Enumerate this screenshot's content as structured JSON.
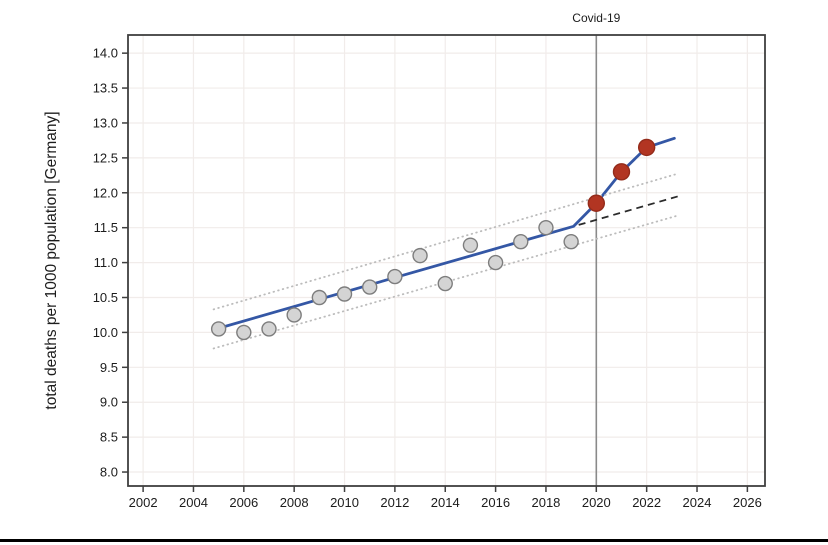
{
  "page": {
    "background": "#ffffff",
    "bottom_rule_color": "#000000"
  },
  "chart_data": {
    "type": "scatter",
    "title": "",
    "xlabel": "",
    "ylabel": "total deaths per 1000 population [Germany]",
    "xlim": [
      2001.4,
      2026.7
    ],
    "ylim": [
      7.8,
      14.26
    ],
    "xticks": [
      2002,
      2004,
      2006,
      2008,
      2010,
      2012,
      2014,
      2016,
      2018,
      2020,
      2022,
      2024,
      2026
    ],
    "yticks": [
      8.0,
      8.5,
      9.0,
      9.5,
      10.0,
      10.5,
      11.0,
      11.5,
      12.0,
      12.5,
      13.0,
      13.5,
      14.0
    ],
    "ytick_labels": [
      "8.0",
      "8.5",
      "9.0",
      "9.5",
      "10.0",
      "10.5",
      "11.0",
      "11.5",
      "12.0",
      "12.5",
      "13.0",
      "13.5",
      "14.0"
    ],
    "grid": true,
    "legend": "none",
    "annotation": {
      "label": "Covid-19",
      "x": 2020
    },
    "series": [
      {
        "name": "observed-pre-covid",
        "type": "scatter",
        "marker_fill": "#d4d4d4",
        "marker_stroke": "#7d7d7d",
        "x": [
          2005,
          2006,
          2007,
          2008,
          2009,
          2010,
          2011,
          2012,
          2013,
          2014,
          2015,
          2016,
          2017,
          2018,
          2019
        ],
        "y": [
          10.05,
          10.0,
          10.05,
          10.25,
          10.5,
          10.55,
          10.65,
          10.8,
          11.1,
          10.7,
          11.25,
          11.0,
          11.3,
          11.5,
          11.3
        ]
      },
      {
        "name": "covid-years",
        "type": "scatter",
        "marker_fill": "#b23522",
        "marker_stroke": "#942b1a",
        "x": [
          2020,
          2021,
          2022
        ],
        "y": [
          11.85,
          12.3,
          12.65
        ]
      },
      {
        "name": "fit-and-observed-line",
        "type": "line",
        "color": "#3457a5",
        "x": [
          2005,
          2019.1,
          2020,
          2021,
          2022,
          2023.1
        ],
        "y": [
          10.06,
          11.52,
          11.85,
          12.3,
          12.65,
          12.78
        ]
      },
      {
        "name": "pre-covid-trend-extrapolation",
        "type": "dashed-line",
        "color": "#2b2b2b",
        "x": [
          2019.3,
          2023.35
        ],
        "y": [
          11.54,
          11.96
        ]
      },
      {
        "name": "prediction-band-upper",
        "type": "dotted-line",
        "color": "#bcbcbc",
        "x": [
          2004.8,
          2023.2
        ],
        "y": [
          10.33,
          12.27
        ]
      },
      {
        "name": "prediction-band-lower",
        "type": "dotted-line",
        "color": "#bcbcbc",
        "x": [
          2004.8,
          2023.2
        ],
        "y": [
          9.77,
          11.67
        ]
      }
    ],
    "event_line": {
      "x": 2020,
      "color": "#8a8a8a"
    },
    "style": {
      "border_color": "#3f3f3f",
      "grid_color": "#f1ecea",
      "tick_color": "#3f3f3f",
      "blue_line_width": 2.8,
      "gray_marker_radius": 7,
      "red_marker_radius": 8
    }
  }
}
